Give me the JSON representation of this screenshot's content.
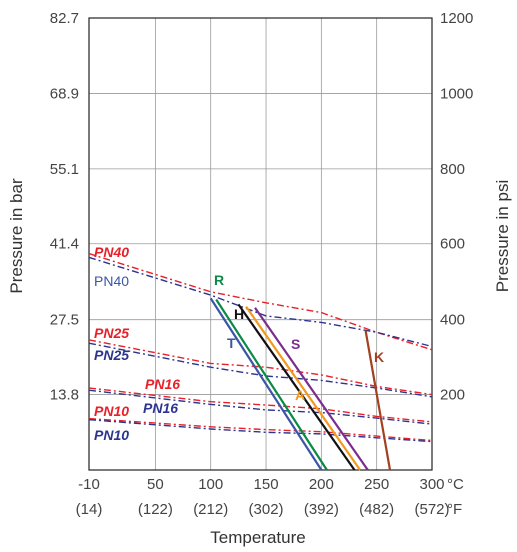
{
  "chart_data": {
    "type": "line",
    "xlabel": "Temperature",
    "ylabel_left": "Pressure in bar",
    "ylabel_right": "Pressure in psi",
    "x_unit_c": "°C",
    "x_unit_f": "°F",
    "xlim": [
      -10,
      300
    ],
    "ylim_bar": [
      0,
      82.7
    ],
    "ylim_psi": [
      0,
      1200
    ],
    "x_ticks": [
      -10,
      50,
      100,
      150,
      200,
      250,
      300
    ],
    "x_ticks_f": [
      "(14)",
      "(122)",
      "(212)",
      "(302)",
      "(392)",
      "(482)",
      "(572)"
    ],
    "y_ticks_bar": [
      "13.8",
      "27.5",
      "41.4",
      "55.1",
      "68.9",
      "82.7"
    ],
    "y_ticks_psi": [
      "200",
      "400",
      "600",
      "800",
      "1000",
      "1200"
    ],
    "grid": true,
    "colors": {
      "red": "#e8202a",
      "navy": "#2b3590",
      "T": "#3a56a5",
      "R": "#0a8a45",
      "H": "#111111",
      "A": "#f29a1f",
      "S": "#7b2d8e",
      "K": "#a2401f"
    },
    "pn_series": [
      {
        "name": "PN40",
        "label_style": "red",
        "red": [
          [
            -10,
            39.6
          ],
          [
            100,
            32.6
          ],
          [
            150,
            30.6
          ],
          [
            200,
            28.8
          ],
          [
            250,
            25.2
          ],
          [
            300,
            22.0
          ]
        ],
        "navy": [
          [
            -10,
            38.9
          ],
          [
            100,
            32.0
          ],
          [
            150,
            28.2
          ],
          [
            200,
            27.0
          ],
          [
            250,
            25.2
          ],
          [
            300,
            22.6
          ]
        ]
      },
      {
        "name": "PN40",
        "label_style": "navy-plain"
      },
      {
        "name": "PN25",
        "label_style": "red",
        "red": [
          [
            -10,
            23.8
          ],
          [
            100,
            19.5
          ],
          [
            150,
            18.8
          ],
          [
            200,
            17.4
          ],
          [
            250,
            15.3
          ],
          [
            300,
            13.8
          ]
        ],
        "navy": [
          [
            -10,
            23.2
          ],
          [
            100,
            18.8
          ],
          [
            150,
            17.2
          ],
          [
            200,
            16.4
          ],
          [
            250,
            15.0
          ],
          [
            300,
            13.4
          ]
        ]
      },
      {
        "name": "PN25",
        "label_style": "navy"
      },
      {
        "name": "PN16",
        "label_style": "red",
        "red": [
          [
            -10,
            15.0
          ],
          [
            100,
            12.5
          ],
          [
            150,
            11.9
          ],
          [
            200,
            11.2
          ],
          [
            250,
            9.8
          ],
          [
            300,
            8.8
          ]
        ],
        "navy": [
          [
            -10,
            14.6
          ],
          [
            100,
            12.0
          ],
          [
            150,
            11.0
          ],
          [
            200,
            10.5
          ],
          [
            250,
            9.5
          ],
          [
            300,
            8.4
          ]
        ]
      },
      {
        "name": "PN16",
        "label_style": "navy"
      },
      {
        "name": "PN10",
        "label_style": "red",
        "red": [
          [
            -10,
            9.4
          ],
          [
            100,
            7.9
          ],
          [
            150,
            7.4
          ],
          [
            200,
            7.0
          ],
          [
            250,
            6.2
          ],
          [
            300,
            5.4
          ]
        ],
        "navy": [
          [
            -10,
            9.2
          ],
          [
            100,
            7.5
          ],
          [
            150,
            6.9
          ],
          [
            200,
            6.6
          ],
          [
            250,
            5.9
          ],
          [
            300,
            5.2
          ]
        ]
      },
      {
        "name": "PN10",
        "label_style": "navy"
      }
    ],
    "series": [
      {
        "name": "T",
        "color": "T",
        "points": [
          [
            100,
            31.4
          ],
          [
            200,
            0
          ]
        ]
      },
      {
        "name": "R",
        "color": "R",
        "points": [
          [
            105,
            31.2
          ],
          [
            205,
            0
          ]
        ]
      },
      {
        "name": "H",
        "color": "H",
        "points": [
          [
            125,
            30.3
          ],
          [
            230,
            0
          ]
        ]
      },
      {
        "name": "A",
        "color": "A",
        "points": [
          [
            132,
            29.9
          ],
          [
            235,
            0
          ]
        ]
      },
      {
        "name": "S",
        "color": "S",
        "points": [
          [
            140,
            29.7
          ],
          [
            242,
            0
          ]
        ]
      },
      {
        "name": "K",
        "color": "K",
        "points": [
          [
            240,
            25.5
          ],
          [
            262,
            0
          ]
        ]
      }
    ]
  }
}
